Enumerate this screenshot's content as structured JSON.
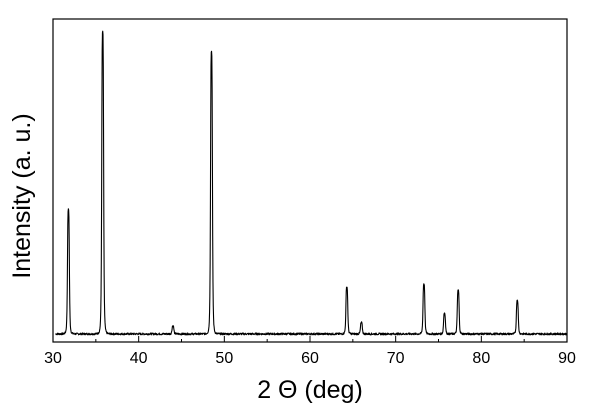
{
  "chart_data": {
    "type": "line",
    "title": "",
    "xlabel": "2 Θ (deg)",
    "ylabel": "Intensity (a. u.)",
    "xlim": [
      30,
      90
    ],
    "ylim": [
      0,
      100
    ],
    "x_ticks": [
      30,
      40,
      50,
      60,
      70,
      80,
      90
    ],
    "y_ticks_shown": false,
    "grid": false,
    "legend": "none",
    "baseline": 2.5,
    "series": [
      {
        "color": "#000000",
        "peaks": [
          {
            "x": 31.8,
            "y": 41
          },
          {
            "x": 35.8,
            "y": 96
          },
          {
            "x": 44.0,
            "y": 5
          },
          {
            "x": 48.5,
            "y": 90
          },
          {
            "x": 64.3,
            "y": 17
          },
          {
            "x": 66.0,
            "y": 6
          },
          {
            "x": 73.3,
            "y": 18
          },
          {
            "x": 75.7,
            "y": 9
          },
          {
            "x": 77.3,
            "y": 16
          },
          {
            "x": 84.2,
            "y": 13
          }
        ]
      }
    ]
  }
}
